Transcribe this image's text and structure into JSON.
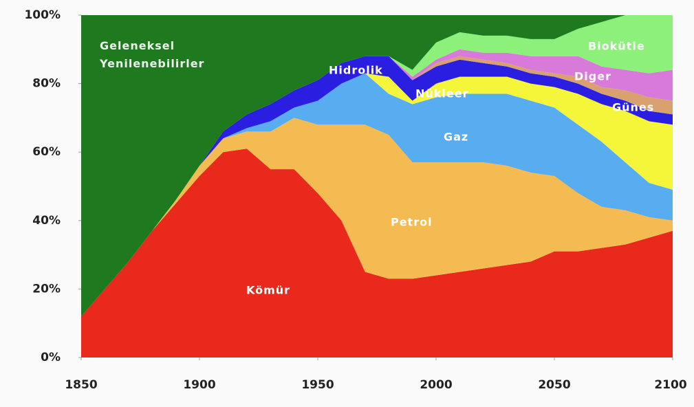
{
  "chart_data": {
    "type": "stacked_area",
    "x": [
      1850,
      1860,
      1870,
      1880,
      1890,
      1900,
      1910,
      1920,
      1930,
      1940,
      1950,
      1960,
      1970,
      1980,
      1990,
      2000,
      2010,
      2020,
      2030,
      2040,
      2050,
      2060,
      2070,
      2080,
      2090,
      2100
    ],
    "series": [
      {
        "name": "Kömür",
        "color": "#e8291c",
        "values": [
          12,
          20,
          28,
          37,
          45,
          53,
          60,
          61,
          55,
          55,
          48,
          40,
          25,
          23,
          23,
          24,
          25,
          26,
          27,
          28,
          31,
          31,
          32,
          33,
          35,
          37
        ]
      },
      {
        "name": "Petrol",
        "color": "#f4bb52",
        "values": [
          0,
          0,
          0,
          0,
          1,
          3,
          4,
          5,
          11,
          15,
          20,
          28,
          43,
          42,
          34,
          33,
          32,
          31,
          29,
          26,
          22,
          17,
          12,
          10,
          6,
          3
        ]
      },
      {
        "name": "Gaz",
        "color": "#58adf0",
        "values": [
          0,
          0,
          0,
          0,
          0,
          0,
          0,
          1,
          3,
          3,
          7,
          12,
          15,
          12,
          17,
          19,
          20,
          20,
          21,
          21,
          20,
          20,
          19,
          14,
          10,
          9
        ]
      },
      {
        "name": "Nükleer",
        "color": "#f5f53a",
        "values": [
          0,
          0,
          0,
          0,
          0,
          0,
          0,
          0,
          0,
          0,
          0,
          0,
          0,
          5,
          1,
          4,
          5,
          5,
          5,
          5,
          6,
          9,
          11,
          15,
          18,
          19
        ]
      },
      {
        "name": "Hidrolik",
        "color": "#2a1fe0",
        "values": [
          0,
          0,
          0,
          0,
          0,
          0,
          2,
          4,
          5,
          5,
          6,
          6,
          5,
          6,
          6,
          5,
          5,
          4,
          3,
          3,
          3,
          3,
          3,
          3,
          3,
          3
        ]
      },
      {
        "name": "Günes",
        "color": "#d9a070",
        "values": [
          0,
          0,
          0,
          0,
          0,
          0,
          0,
          0,
          0,
          0,
          0,
          0,
          0,
          0,
          0,
          1,
          1,
          1,
          1,
          1,
          1,
          2,
          2,
          3,
          4,
          4
        ]
      },
      {
        "name": "Diger",
        "color": "#d77ad9",
        "values": [
          0,
          0,
          0,
          0,
          0,
          0,
          0,
          0,
          0,
          0,
          0,
          0,
          0,
          0,
          1,
          1,
          2,
          2,
          3,
          4,
          5,
          6,
          6,
          6,
          7,
          9
        ]
      },
      {
        "name": "Biokütle",
        "color": "#8cf07a",
        "values": [
          0,
          0,
          0,
          0,
          0,
          0,
          0,
          0,
          0,
          0,
          0,
          0,
          0,
          0,
          2,
          5,
          5,
          5,
          5,
          5,
          5,
          8,
          13,
          16,
          17,
          16
        ]
      },
      {
        "name": "Geleneksel Yenilenebilirler",
        "color": "#1f7a1f",
        "values": [
          88,
          80,
          72,
          63,
          54,
          44,
          34,
          29,
          26,
          22,
          19,
          14,
          12,
          12,
          16,
          8,
          5,
          6,
          6,
          7,
          7,
          4,
          2,
          0,
          0,
          0
        ]
      }
    ],
    "xlim": [
      1850,
      2100
    ],
    "xticks": [
      1850,
      1900,
      1950,
      2000,
      2050,
      2100
    ],
    "ylim": [
      0,
      100
    ],
    "yticks": [
      {
        "value": 0,
        "label": "0%"
      },
      {
        "value": 20,
        "label": "20%"
      },
      {
        "value": 40,
        "label": "40%"
      },
      {
        "value": 60,
        "label": "60%"
      },
      {
        "value": 80,
        "label": "80%"
      },
      {
        "value": 100,
        "label": "100%"
      }
    ]
  }
}
